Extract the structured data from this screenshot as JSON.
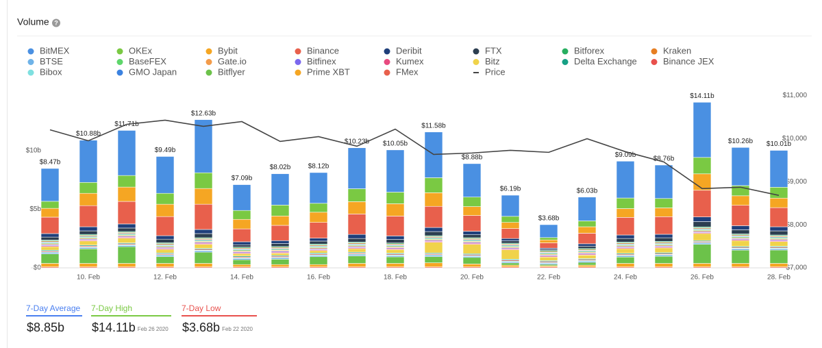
{
  "chart_data": {
    "type": "bar",
    "stacked": true,
    "title": "Volume",
    "categories": [
      null,
      "10. Feb",
      null,
      "12. Feb",
      null,
      "14. Feb",
      null,
      "16. Feb",
      null,
      "18. Feb",
      null,
      "20. Feb",
      null,
      "22. Feb",
      null,
      "24. Feb",
      null,
      "26. Feb",
      null,
      "28. Feb"
    ],
    "ylim": [
      0,
      15.2
    ],
    "yticks": [
      {
        "value": 0,
        "label": "$0"
      },
      {
        "value": 5,
        "label": "$5b"
      },
      {
        "value": 10,
        "label": "$10b"
      }
    ],
    "y2lim": [
      7000,
      11143
    ],
    "y2ticks": [
      {
        "value": 7000,
        "label": "$7,000"
      },
      {
        "value": 8000,
        "label": "$8,000"
      },
      {
        "value": 9000,
        "label": "$9,000"
      },
      {
        "value": 10000,
        "label": "$10,000"
      },
      {
        "value": 11000,
        "label": "$11,000"
      }
    ],
    "grid": false,
    "totals": {
      "values": [
        8.47,
        10.88,
        11.71,
        9.49,
        12.63,
        7.09,
        8.02,
        8.12,
        10.23,
        10.05,
        11.58,
        8.88,
        6.19,
        3.68,
        6.03,
        9.09,
        8.76,
        14.11,
        10.26,
        10.01
      ],
      "value_labels": [
        "$8.47b",
        "$10.88b",
        "$11.71b",
        "$9.49b",
        "$12.63b",
        "$7.09b",
        "$8.02b",
        "$8.12b",
        "$10.23b",
        "$10.05b",
        "$11.58b",
        "$8.88b",
        "$6.19b",
        "$3.68b",
        "$6.03b",
        "$9.09b",
        "$8.76b",
        "$14.11b",
        "$10.26b",
        "$10.01b"
      ]
    },
    "series": [
      {
        "name": "BitMEX",
        "color": "#4a90e2",
        "values": [
          2.8,
          3.6,
          3.84,
          3.14,
          4.53,
          2.2,
          2.67,
          2.62,
          3.49,
          3.6,
          3.9,
          2.85,
          1.8,
          1.1,
          2.03,
          3.14,
          2.85,
          4.7,
          3.25,
          3.14
        ]
      },
      {
        "name": "OKEx",
        "color": "#7ac943",
        "values": [
          0.6,
          0.93,
          0.99,
          0.93,
          1.34,
          0.76,
          0.93,
          0.76,
          1.1,
          0.99,
          1.28,
          0.81,
          0.52,
          0.2,
          0.5,
          0.9,
          0.8,
          1.4,
          0.87,
          0.93
        ]
      },
      {
        "name": "Bybit",
        "color": "#f5a623",
        "values": [
          0.75,
          1.05,
          1.22,
          1.05,
          1.34,
          0.81,
          0.8,
          0.87,
          1.05,
          1.05,
          1.16,
          0.76,
          0.52,
          0.25,
          0.55,
          0.75,
          0.75,
          1.4,
          0.81,
          0.81
        ]
      },
      {
        "name": "Binance",
        "color": "#e8604c",
        "values": [
          1.4,
          1.8,
          1.92,
          1.63,
          2.15,
          1.1,
          1.3,
          1.34,
          1.74,
          1.69,
          1.8,
          1.34,
          0.85,
          0.45,
          0.9,
          1.5,
          1.5,
          2.27,
          1.74,
          1.63
        ]
      },
      {
        "name": "Deribit",
        "color": "#1f3f7a",
        "values": [
          0.3,
          0.35,
          0.35,
          0.3,
          0.35,
          0.25,
          0.25,
          0.25,
          0.35,
          0.3,
          0.35,
          0.3,
          0.2,
          0.1,
          0.2,
          0.3,
          0.3,
          0.4,
          0.35,
          0.35
        ]
      },
      {
        "name": "FTX",
        "color": "#2c3e50",
        "values": [
          0.25,
          0.3,
          0.3,
          0.3,
          0.35,
          0.2,
          0.25,
          0.25,
          0.3,
          0.3,
          0.35,
          0.25,
          0.2,
          0.1,
          0.2,
          0.3,
          0.3,
          0.45,
          0.35,
          0.35
        ]
      },
      {
        "name": "Bitforex",
        "color": "#27ae60",
        "values": [
          0.08,
          0.08,
          0.08,
          0.08,
          0.08,
          0.08,
          0.08,
          0.08,
          0.08,
          0.08,
          0.08,
          0.08,
          0.08,
          0.08,
          0.08,
          0.08,
          0.08,
          0.08,
          0.08,
          0.08
        ]
      },
      {
        "name": "Kraken",
        "color": "#e67e22",
        "values": [
          0.08,
          0.08,
          0.08,
          0.08,
          0.08,
          0.08,
          0.08,
          0.08,
          0.08,
          0.08,
          0.08,
          0.08,
          0.08,
          0.08,
          0.08,
          0.08,
          0.08,
          0.08,
          0.08,
          0.08
        ]
      },
      {
        "name": "BTSE",
        "color": "#6fb3e8",
        "values": [
          0.08,
          0.08,
          0.08,
          0.08,
          0.08,
          0.08,
          0.08,
          0.08,
          0.08,
          0.08,
          0.08,
          0.08,
          0.08,
          0.08,
          0.08,
          0.08,
          0.08,
          0.08,
          0.08,
          0.08
        ]
      },
      {
        "name": "BaseFEX",
        "color": "#5ed66b",
        "values": [
          0.08,
          0.08,
          0.08,
          0.08,
          0.08,
          0.08,
          0.08,
          0.08,
          0.08,
          0.08,
          0.08,
          0.08,
          0.08,
          0.08,
          0.08,
          0.08,
          0.08,
          0.08,
          0.08,
          0.08
        ]
      },
      {
        "name": "Gate.io",
        "color": "#f39c4a",
        "values": [
          0.08,
          0.08,
          0.08,
          0.08,
          0.08,
          0.08,
          0.08,
          0.08,
          0.08,
          0.08,
          0.08,
          0.08,
          0.08,
          0.08,
          0.08,
          0.08,
          0.08,
          0.08,
          0.08,
          0.08
        ]
      },
      {
        "name": "Bitfinex",
        "color": "#7b68ee",
        "values": [
          0.08,
          0.08,
          0.08,
          0.08,
          0.08,
          0.08,
          0.08,
          0.08,
          0.08,
          0.08,
          0.08,
          0.08,
          0.08,
          0.08,
          0.08,
          0.08,
          0.08,
          0.08,
          0.08,
          0.08
        ]
      },
      {
        "name": "Kumex",
        "color": "#e84a7f",
        "values": [
          0.08,
          0.08,
          0.08,
          0.08,
          0.08,
          0.08,
          0.08,
          0.08,
          0.08,
          0.08,
          0.08,
          0.08,
          0.08,
          0.08,
          0.08,
          0.08,
          0.08,
          0.08,
          0.08,
          0.08
        ]
      },
      {
        "name": "Bitz",
        "color": "#f0d34a",
        "values": [
          0.3,
          0.35,
          0.4,
          0.3,
          0.35,
          0.2,
          0.2,
          0.2,
          0.3,
          0.3,
          0.9,
          0.8,
          0.8,
          0.3,
          0.3,
          0.4,
          0.4,
          0.6,
          0.5,
          0.4
        ]
      },
      {
        "name": "Delta Exchange",
        "color": "#16a085",
        "values": [
          0.08,
          0.08,
          0.08,
          0.08,
          0.08,
          0.08,
          0.08,
          0.08,
          0.08,
          0.08,
          0.08,
          0.08,
          0.08,
          0.08,
          0.08,
          0.08,
          0.08,
          0.08,
          0.08,
          0.08
        ]
      },
      {
        "name": "Binance JEX",
        "color": "#e8504c",
        "values": [
          0.08,
          0.08,
          0.08,
          0.08,
          0.08,
          0.08,
          0.08,
          0.08,
          0.08,
          0.08,
          0.08,
          0.08,
          0.08,
          0.08,
          0.08,
          0.08,
          0.08,
          0.08,
          0.08,
          0.08
        ]
      },
      {
        "name": "Bibox",
        "color": "#7fe0e0",
        "values": [
          0.08,
          0.08,
          0.08,
          0.08,
          0.08,
          0.08,
          0.08,
          0.08,
          0.08,
          0.08,
          0.08,
          0.08,
          0.08,
          0.08,
          0.08,
          0.08,
          0.08,
          0.08,
          0.08,
          0.08
        ]
      },
      {
        "name": "GMO Japan",
        "color": "#3b82e0",
        "values": [
          0.08,
          0.08,
          0.08,
          0.08,
          0.08,
          0.08,
          0.08,
          0.08,
          0.08,
          0.08,
          0.08,
          0.08,
          0.08,
          0.08,
          0.08,
          0.08,
          0.08,
          0.08,
          0.08,
          0.08
        ]
      },
      {
        "name": "Bitflyer",
        "color": "#6cc24a",
        "values": [
          0.81,
          1.24,
          1.43,
          0.58,
          0.96,
          0.41,
          0.46,
          0.67,
          0.64,
          0.56,
          0.53,
          0.56,
          0.19,
          0.12,
          0.24,
          0.54,
          0.6,
          1.63,
          1.13,
          1.14
        ]
      },
      {
        "name": "Prime XBT",
        "color": "#f5a623",
        "values": [
          0.3,
          0.3,
          0.3,
          0.3,
          0.3,
          0.2,
          0.2,
          0.2,
          0.3,
          0.3,
          0.35,
          0.25,
          0.15,
          0.1,
          0.15,
          0.3,
          0.3,
          0.3,
          0.3,
          0.3
        ]
      },
      {
        "name": "FMex",
        "color": "#e8604c",
        "values": [
          0.08,
          0.08,
          0.08,
          0.08,
          0.08,
          0.08,
          0.08,
          0.08,
          0.08,
          0.08,
          0.08,
          0.08,
          0.08,
          0.08,
          0.08,
          0.08,
          0.08,
          0.08,
          0.08,
          0.08
        ]
      },
      {
        "name": "Price",
        "color": "#444444",
        "type": "line",
        "axis": "y2",
        "values": [
          10206,
          9952,
          10333,
          10429,
          10286,
          10397,
          9937,
          10048,
          9825,
          10222,
          9635,
          9667,
          9730,
          9683,
          10000,
          9698,
          9460,
          8841,
          8873,
          8683
        ]
      }
    ]
  },
  "stats": [
    {
      "label": "7-Day Average",
      "value": "$8.85b",
      "color": "#4a7ff0"
    },
    {
      "label": "7-Day High",
      "value": "$14.11b",
      "date": "Feb 26 2020",
      "color": "#7ac943"
    },
    {
      "label": "7-Day Low",
      "value": "$3.68b",
      "date": "Feb 22 2020",
      "color": "#e8504c"
    }
  ]
}
